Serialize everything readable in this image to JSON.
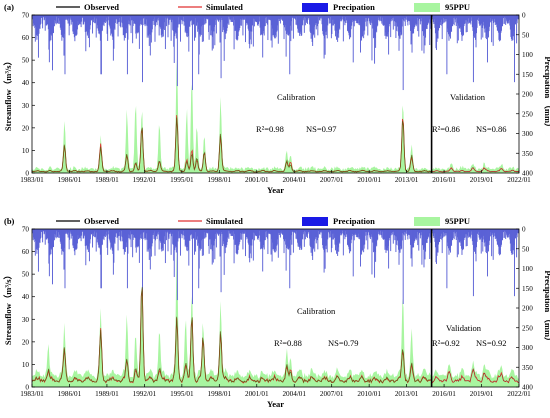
{
  "legend": {
    "observed": "Observed",
    "simulated": "Simulated",
    "precipitation": "Precipation",
    "ppu": "95PPU"
  },
  "colors": {
    "observed": "#000000",
    "simulated": "#e03030",
    "precipitation_legend": "#1a1ae6",
    "precipitation_bars": "#5b62d6",
    "ppu": "#a8f5a0"
  },
  "chart_data": [
    {
      "panel_label": "(a)",
      "type": "line",
      "x_ticks": [
        "1983/01",
        "1986/01",
        "1989/01",
        "1992/01",
        "1995/01",
        "1998/01",
        "2001/01",
        "2004/01",
        "2007/01",
        "2010/01",
        "2013/01",
        "2016/01",
        "2019/01",
        "2022/01"
      ],
      "xlabel": "Year",
      "ylabel": "Streamflow（m³/s）",
      "y2label": "Precipation （mm）",
      "ylim": [
        0,
        70
      ],
      "y2lim": [
        0,
        400
      ],
      "y2_inverted": true,
      "y_ticks": [
        "0",
        "10",
        "20",
        "30",
        "40",
        "50",
        "60",
        "70"
      ],
      "y2_ticks": [
        "0",
        "50",
        "100",
        "150",
        "200",
        "250",
        "300",
        "350",
        "400"
      ],
      "split_year": 2015.0,
      "calibration": {
        "label": "Calibration",
        "r2": "R²=0.98",
        "ns": "NS=0.97"
      },
      "validation": {
        "label": "Validation",
        "r2": "R²=0.86",
        "ns": "NS=0.86"
      },
      "peaks": [
        {
          "t": 1985.6,
          "obs": 12,
          "sim": 11.5,
          "ppu": 22
        },
        {
          "t": 1988.5,
          "obs": 10.5,
          "sim": 11.8,
          "ppu": 14
        },
        {
          "t": 1990.6,
          "obs": 7.5,
          "sim": 7,
          "ppu": 26
        },
        {
          "t": 1991.3,
          "obs": 4,
          "sim": 3.5,
          "ppu": 30
        },
        {
          "t": 1991.8,
          "obs": 21,
          "sim": 20,
          "ppu": 28
        },
        {
          "t": 1993.2,
          "obs": 5,
          "sim": 4.5,
          "ppu": 21
        },
        {
          "t": 1994.6,
          "obs": 24,
          "sim": 25,
          "ppu": 50
        },
        {
          "t": 1995.4,
          "obs": 4,
          "sim": 5,
          "ppu": 27
        },
        {
          "t": 1995.8,
          "obs": 8,
          "sim": 10,
          "ppu": 42
        },
        {
          "t": 1996.2,
          "obs": 6,
          "sim": 5,
          "ppu": 20
        },
        {
          "t": 1996.8,
          "obs": 9,
          "sim": 8.5,
          "ppu": 15
        },
        {
          "t": 1998.1,
          "obs": 17,
          "sim": 16,
          "ppu": 32
        },
        {
          "t": 2003.4,
          "obs": 4.5,
          "sim": 4,
          "ppu": 8
        },
        {
          "t": 2003.7,
          "obs": 3,
          "sim": 4.5,
          "ppu": 7
        },
        {
          "t": 2012.7,
          "obs": 24,
          "sim": 25,
          "ppu": 30
        },
        {
          "t": 2013.4,
          "obs": 7,
          "sim": 6,
          "ppu": 10
        },
        {
          "t": 2016.6,
          "obs": 1,
          "sim": 1.3,
          "ppu": 2
        },
        {
          "t": 2018.3,
          "obs": 1.8,
          "sim": 1.5,
          "ppu": 2.5
        },
        {
          "t": 2019.2,
          "obs": 1.2,
          "sim": 1.6,
          "ppu": 2.2
        },
        {
          "t": 2020.6,
          "obs": 1,
          "sim": 1.2,
          "ppu": 2
        }
      ],
      "base_flow": 0.5,
      "precip_spikes": [
        {
          "t": 1984.6,
          "mm": 140
        },
        {
          "t": 1985.6,
          "mm": 150
        },
        {
          "t": 1988.5,
          "mm": 150
        },
        {
          "t": 1990.6,
          "mm": 150
        },
        {
          "t": 1991.8,
          "mm": 170
        },
        {
          "t": 1994.6,
          "mm": 180
        },
        {
          "t": 1995.8,
          "mm": 190
        },
        {
          "t": 1996.3,
          "mm": 150
        },
        {
          "t": 1998.1,
          "mm": 160
        },
        {
          "t": 2003.6,
          "mm": 150
        },
        {
          "t": 2008.7,
          "mm": 120
        },
        {
          "t": 2010.2,
          "mm": 115
        },
        {
          "t": 2012.7,
          "mm": 190
        },
        {
          "t": 2016.2,
          "mm": 150
        },
        {
          "t": 2018.3,
          "mm": 170
        },
        {
          "t": 2021.6,
          "mm": 170
        }
      ]
    },
    {
      "panel_label": "(b)",
      "type": "line",
      "x_ticks": [
        "1983/01",
        "1986/01",
        "1989/01",
        "1992/01",
        "1995/01",
        "1998/01",
        "2001/01",
        "2004/01",
        "2007/01",
        "2010/01",
        "2013/01",
        "2016/01",
        "2019/01",
        "2022/01"
      ],
      "xlabel": "Year",
      "ylabel": "Streamflow（m³/s）",
      "y2label": "Precipation （mm）",
      "ylim": [
        0,
        70
      ],
      "y2lim": [
        0,
        400
      ],
      "y2_inverted": true,
      "y_ticks": [
        "0",
        "10",
        "20",
        "30",
        "40",
        "50",
        "60",
        "70"
      ],
      "y2_ticks": [
        "0",
        "50",
        "100",
        "150",
        "200",
        "250",
        "300",
        "350",
        "400"
      ],
      "split_year": 2015.0,
      "calibration": {
        "label": "Calibration",
        "r2": "R²=0.88",
        "ns": "NS=0.79"
      },
      "validation": {
        "label": "Validation",
        "r2": "R²=0.92",
        "ns": "NS=0.92"
      },
      "peaks": [
        {
          "t": 1984.3,
          "obs": 4,
          "sim": 3,
          "ppu": 12
        },
        {
          "t": 1985.6,
          "obs": 14,
          "sim": 13,
          "ppu": 22
        },
        {
          "t": 1988.5,
          "obs": 21,
          "sim": 22,
          "ppu": 28
        },
        {
          "t": 1990.6,
          "obs": 9,
          "sim": 8,
          "ppu": 26
        },
        {
          "t": 1991.3,
          "obs": 5,
          "sim": 4,
          "ppu": 18
        },
        {
          "t": 1991.8,
          "obs": 45,
          "sim": 44,
          "ppu": 46
        },
        {
          "t": 1993.2,
          "obs": 6,
          "sim": 5,
          "ppu": 22
        },
        {
          "t": 1994.6,
          "obs": 28,
          "sim": 27,
          "ppu": 57
        },
        {
          "t": 1995.3,
          "obs": 7,
          "sim": 6,
          "ppu": 25
        },
        {
          "t": 1995.8,
          "obs": 30,
          "sim": 29,
          "ppu": 40
        },
        {
          "t": 1996.7,
          "obs": 20,
          "sim": 19,
          "ppu": 25
        },
        {
          "t": 1998.1,
          "obs": 23,
          "sim": 22,
          "ppu": 35
        },
        {
          "t": 2003.4,
          "obs": 6,
          "sim": 5,
          "ppu": 10
        },
        {
          "t": 2003.7,
          "obs": 4,
          "sim": 5,
          "ppu": 8
        },
        {
          "t": 2012.7,
          "obs": 15,
          "sim": 14,
          "ppu": 38
        },
        {
          "t": 2013.4,
          "obs": 7,
          "sim": 6,
          "ppu": 20
        },
        {
          "t": 2016.4,
          "obs": 3,
          "sim": 3.5,
          "ppu": 4
        },
        {
          "t": 2018.3,
          "obs": 4.5,
          "sim": 4,
          "ppu": 5
        },
        {
          "t": 2019.2,
          "obs": 3,
          "sim": 3.5,
          "ppu": 4
        },
        {
          "t": 2020.6,
          "obs": 2.5,
          "sim": 3,
          "ppu": 3.5
        }
      ],
      "base_flow": 2,
      "precip_spikes": [
        {
          "t": 1984.6,
          "mm": 140
        },
        {
          "t": 1985.6,
          "mm": 150
        },
        {
          "t": 1988.5,
          "mm": 150
        },
        {
          "t": 1990.6,
          "mm": 150
        },
        {
          "t": 1991.8,
          "mm": 170
        },
        {
          "t": 1994.6,
          "mm": 180
        },
        {
          "t": 1995.8,
          "mm": 190
        },
        {
          "t": 1996.3,
          "mm": 150
        },
        {
          "t": 1998.1,
          "mm": 160
        },
        {
          "t": 2003.6,
          "mm": 150
        },
        {
          "t": 2008.7,
          "mm": 120
        },
        {
          "t": 2010.2,
          "mm": 115
        },
        {
          "t": 2012.7,
          "mm": 190
        },
        {
          "t": 2016.2,
          "mm": 150
        },
        {
          "t": 2018.3,
          "mm": 170
        },
        {
          "t": 2021.6,
          "mm": 170
        }
      ]
    }
  ]
}
